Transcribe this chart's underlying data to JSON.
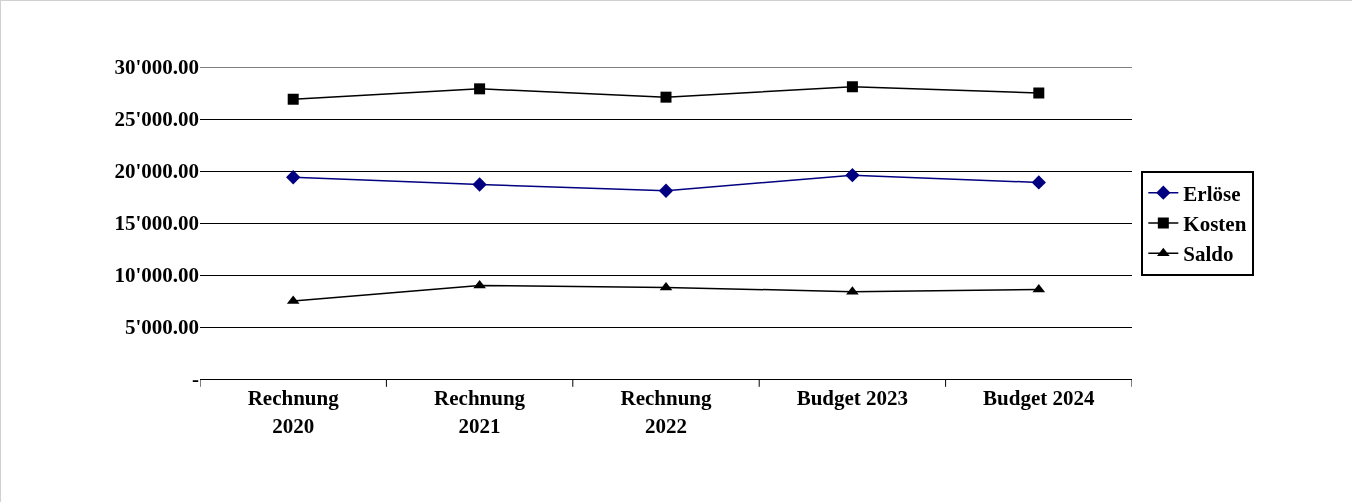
{
  "chart_data": {
    "type": "line",
    "categories": [
      "Rechnung 2020",
      "Rechnung 2021",
      "Rechnung 2022",
      "Budget 2023",
      "Budget 2024"
    ],
    "series": [
      {
        "name": "Erlöse",
        "color": "#000080",
        "marker": "diamond",
        "values": [
          19400,
          18700,
          18100,
          19600,
          18900
        ]
      },
      {
        "name": "Kosten",
        "color": "#000000",
        "marker": "square",
        "values": [
          26900,
          27900,
          27100,
          28100,
          27500
        ]
      },
      {
        "name": "Saldo",
        "color": "#000000",
        "marker": "triangle",
        "values": [
          7500,
          9000,
          8800,
          8400,
          8600
        ]
      }
    ],
    "ylim": [
      0,
      30000
    ],
    "yticks": [
      {
        "value": 0,
        "label": "-"
      },
      {
        "value": 5000,
        "label": "5'000.00"
      },
      {
        "value": 10000,
        "label": "10'000.00"
      },
      {
        "value": 15000,
        "label": "15'000.00"
      },
      {
        "value": 20000,
        "label": "20'000.00"
      },
      {
        "value": 25000,
        "label": "25'000.00"
      },
      {
        "value": 30000,
        "label": "30'000.00"
      }
    ],
    "grid": "y",
    "legend": "right",
    "line_style": "solid"
  }
}
